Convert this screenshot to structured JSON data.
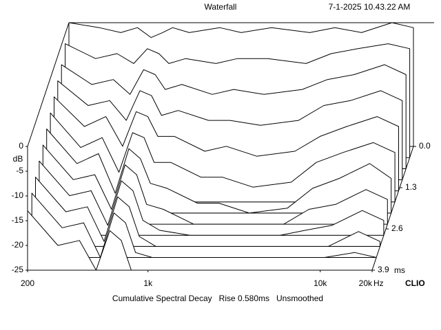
{
  "chart_data": {
    "type": "waterfall",
    "title": "Waterfall",
    "timestamp": "7-1-2025 10.43.22 AM",
    "ylabel": "dB",
    "x_unit": "Hz",
    "z_unit": "ms",
    "brand": "CLIO",
    "footer": "Cumulative Spectral Decay   Rise 0.580ms   Unsmoothed",
    "xscale": "log",
    "xlim": [
      200,
      20000
    ],
    "xticks": [
      200,
      {
        "value": 1000,
        "label": "1k"
      },
      {
        "value": 10000,
        "label": "10k"
      },
      {
        "value": 20000,
        "label": "20k"
      }
    ],
    "ylim": [
      -25,
      0
    ],
    "yticks": [
      0,
      -5,
      -10,
      -15,
      -20,
      -25
    ],
    "zlim": [
      0,
      3.9
    ],
    "zticks": [
      {
        "value": 0,
        "label": "0.0"
      },
      1.3,
      2.6,
      3.9
    ],
    "color": "#000000",
    "x": [
      200,
      300,
      400,
      500,
      600,
      700,
      800,
      1000,
      1500,
      2000,
      3000,
      5000,
      7000,
      10000,
      15000,
      20000
    ],
    "slices": [
      {
        "time": 0,
        "values": [
          0,
          -1,
          -2,
          -1,
          -3,
          -2,
          -1,
          -2,
          -1,
          -2,
          -1,
          -2,
          -1,
          -2,
          0,
          -1
        ]
      },
      {
        "time": 0.35,
        "values": [
          -2,
          -5,
          -4,
          -6,
          -3,
          -4,
          -6,
          -5,
          -6,
          -5,
          -5,
          -6,
          -4,
          -3,
          -2,
          -3
        ]
      },
      {
        "time": 0.7,
        "values": [
          -4,
          -8,
          -7,
          -10,
          -5,
          -6,
          -9,
          -8,
          -10,
          -9,
          -10,
          -9,
          -7,
          -6,
          -4,
          -6
        ]
      },
      {
        "time": 1.05,
        "values": [
          -5,
          -10,
          -9,
          -13,
          -7,
          -8,
          -12,
          -11,
          -13,
          -13,
          -14,
          -13,
          -10,
          -9,
          -7,
          -9
        ]
      },
      {
        "time": 1.4,
        "values": [
          -6,
          -12,
          -10,
          -16,
          -9,
          -10,
          -14,
          -14,
          -17,
          -16,
          -18,
          -17,
          -14,
          -12,
          -10,
          -12
        ]
      },
      {
        "time": 1.75,
        "values": [
          -7,
          -14,
          -12,
          -19,
          -11,
          -12,
          -17,
          -17,
          -20,
          -20,
          -22,
          -21,
          -17,
          -15,
          -13,
          -15
        ]
      },
      {
        "time": 2.1,
        "values": [
          -8,
          -15,
          -13,
          -21,
          -12,
          -14,
          -19,
          -20,
          -23,
          -23,
          -25,
          -24,
          -20,
          -18,
          -15,
          -18
        ]
      },
      {
        "time": 2.45,
        "values": [
          -9,
          -16,
          -15,
          -22,
          -13,
          -15,
          -21,
          -22,
          -25,
          -25,
          -25,
          -25,
          -22,
          -21,
          -18,
          -20
        ]
      },
      {
        "time": 2.8,
        "values": [
          -10,
          -17,
          -16,
          -23,
          -14,
          -16,
          -22,
          -24,
          -25,
          -25,
          -25,
          -25,
          -24,
          -23,
          -20,
          -22
        ]
      },
      {
        "time": 3.15,
        "values": [
          -11,
          -18,
          -17,
          -24,
          -15,
          -17,
          -23,
          -25,
          -25,
          -25,
          -25,
          -25,
          -25,
          -25,
          -22,
          -24
        ]
      },
      {
        "time": 3.5,
        "values": [
          -12,
          -19,
          -18,
          -25,
          -16,
          -18,
          -24,
          -25,
          -25,
          -25,
          -25,
          -25,
          -25,
          -25,
          -24,
          -25
        ]
      },
      {
        "time": 3.9,
        "values": [
          -13,
          -20,
          -19,
          -25,
          -17,
          -19,
          -25,
          -25,
          -25,
          -25,
          -25,
          -25,
          -25,
          -25,
          -25,
          -25
        ]
      }
    ]
  }
}
